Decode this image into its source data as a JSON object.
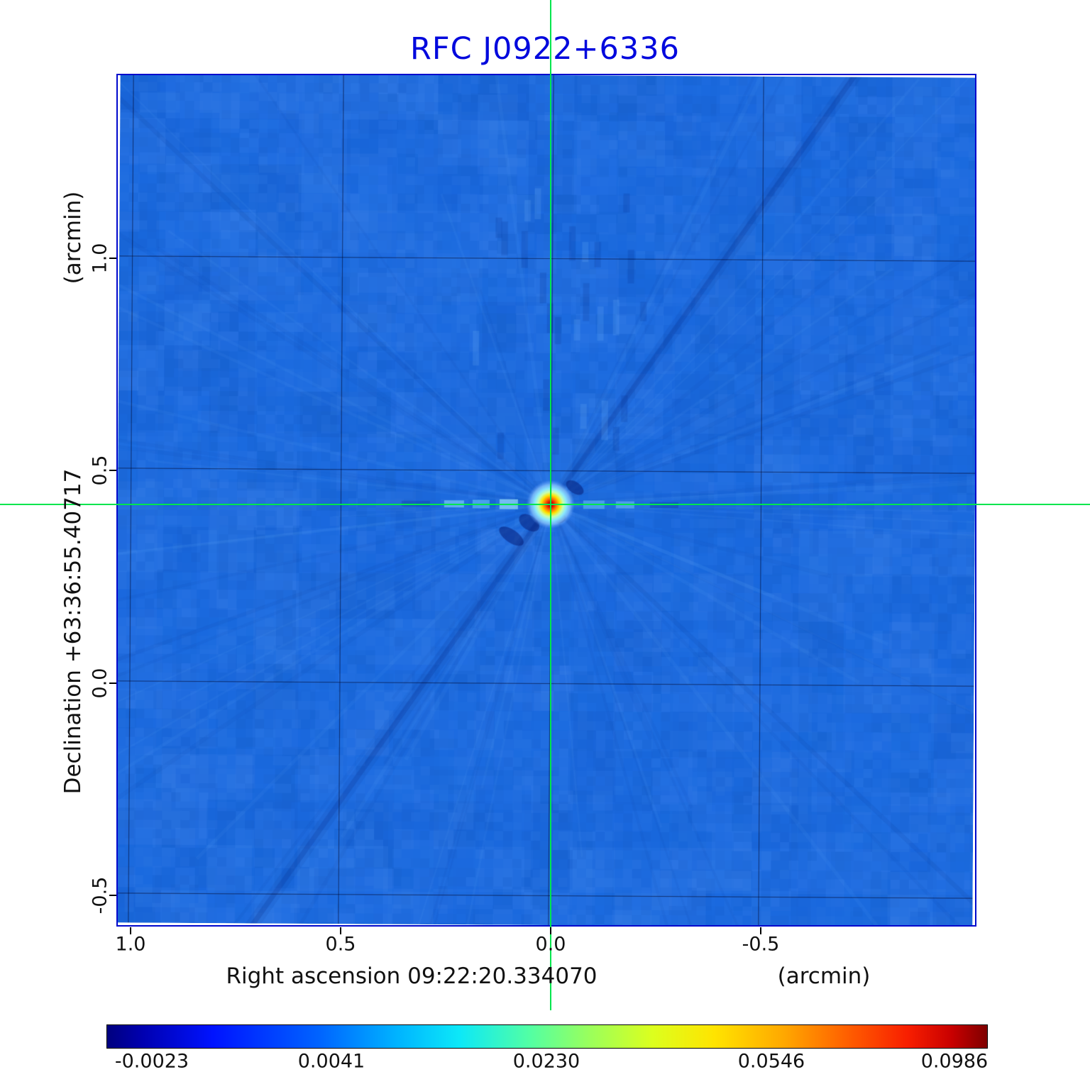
{
  "title": "RFC J0922+6336",
  "plot": {
    "y_unit_label": "(arcmin)",
    "y_axis_label": "Declination  +63:36:55.40717",
    "x_axis_label": "Right ascension  09:22:20.334070",
    "x_unit_label": "(arcmin)",
    "y_ticks": [
      "1.0",
      "0.5",
      "0.0",
      "-0.5"
    ],
    "x_ticks": [
      "1.0",
      "0.5",
      "0.0",
      "-0.5"
    ]
  },
  "colorbar": {
    "tick_labels": [
      "-0.0023",
      "0.0041",
      "0.0230",
      "0.0546",
      "0.0986"
    ]
  },
  "colors": {
    "title": "#0008dd",
    "frame": "#0008cc",
    "crosshair": "#00e64d",
    "field_base": "#1c68de"
  },
  "chart_data": {
    "type": "heatmap",
    "title": "RFC J0922+6336",
    "xlabel": "Right ascension 09:22:20.334070 (arcmin)",
    "ylabel": "Declination +63:36:55.40717 (arcmin)",
    "x_ticks": [
      1.0,
      0.5,
      0.0,
      -0.5
    ],
    "y_ticks": [
      1.0,
      0.5,
      0.0,
      -0.5
    ],
    "x_range_arcmin": [
      1.03,
      -1.01
    ],
    "y_range_arcmin": [
      -0.57,
      1.43
    ],
    "source": {
      "x_arcmin": 0.0,
      "y_arcmin": 0.42,
      "peak_value": 0.0986
    },
    "colorbar_ticks": [
      -0.0023,
      0.0041,
      0.023,
      0.0546,
      0.0986
    ],
    "colormap": "jet",
    "background_level": 0.004,
    "grid": true,
    "legend_position": "colorbar-bottom"
  }
}
